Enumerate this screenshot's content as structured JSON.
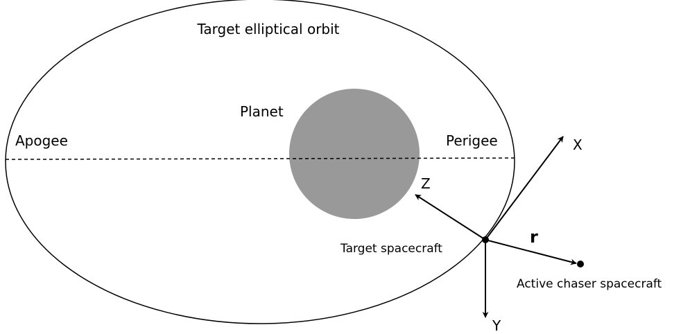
{
  "orbit": {
    "label": "Target elliptical orbit",
    "apogee": "Apogee",
    "perigee": "Perigee"
  },
  "planet": {
    "label": "Planet"
  },
  "target": {
    "label": "Target spacecraft"
  },
  "chaser": {
    "label": "Active chaser spacecraft"
  },
  "axes": {
    "x": "X",
    "y": "Y",
    "z": "Z",
    "r": "r"
  }
}
